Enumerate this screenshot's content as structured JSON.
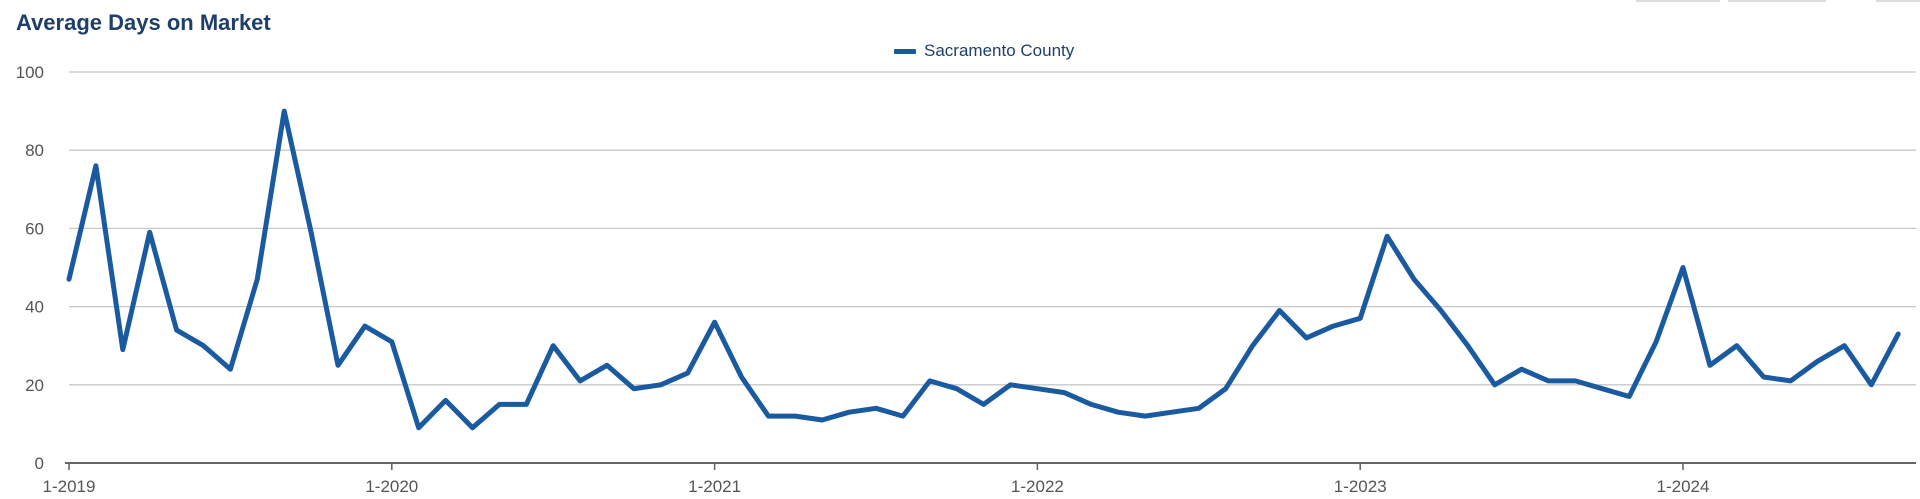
{
  "chart_data": {
    "type": "line",
    "title": "Average Days on Market",
    "xlabel": "",
    "ylabel": "",
    "ylim": [
      0,
      100
    ],
    "yticks": [
      0,
      20,
      40,
      60,
      80,
      100
    ],
    "xticks": [
      "1-2019",
      "1-2020",
      "1-2021",
      "1-2022",
      "1-2023",
      "1-2024"
    ],
    "x_start": "2019-01",
    "x_end": "2024-08",
    "grid": true,
    "legend_position": "top-center",
    "series": [
      {
        "name": "Sacramento County",
        "color": "#1a5aa0",
        "values": [
          47,
          76,
          29,
          59,
          34,
          30,
          24,
          47,
          90,
          59,
          25,
          35,
          31,
          9,
          16,
          9,
          15,
          15,
          30,
          21,
          25,
          19,
          20,
          23,
          36,
          22,
          12,
          12,
          11,
          13,
          14,
          12,
          21,
          19,
          15,
          20,
          19,
          18,
          15,
          13,
          12,
          13,
          14,
          19,
          30,
          39,
          32,
          35,
          37,
          58,
          47,
          39,
          30,
          20,
          24,
          21,
          21,
          19,
          17,
          31,
          50,
          25,
          30,
          22,
          21,
          26,
          30,
          20,
          33
        ]
      }
    ]
  }
}
